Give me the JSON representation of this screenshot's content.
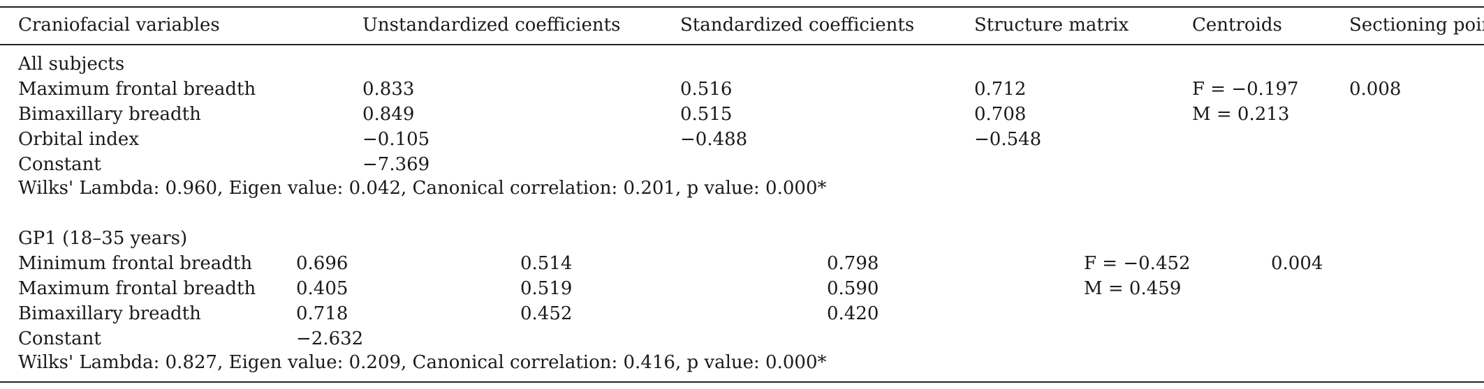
{
  "table": {
    "header": {
      "col1": "Craniofacial variables",
      "col2": "Unstandardized coefficients",
      "col3": "Standardized coefficients",
      "col4": "Structure matrix",
      "col5": "Centroids",
      "col6": "Sectioning poir"
    },
    "group1": {
      "title": "All subjects",
      "rows": [
        {
          "label": "Maximum frontal breadth",
          "unstd": "0.833",
          "std": "0.516",
          "struct": "0.712",
          "centroid": "F = −0.197",
          "section": "0.008"
        },
        {
          "label": "Bimaxillary breadth",
          "unstd": "0.849",
          "std": "0.515",
          "struct": "0.708",
          "centroid": "M = 0.213",
          "section": ""
        },
        {
          "label": "Orbital index",
          "unstd": "−0.105",
          "std": "−0.488",
          "struct": "−0.548",
          "centroid": "",
          "section": ""
        },
        {
          "label": "Constant",
          "unstd": "−7.369",
          "std": "",
          "struct": "",
          "centroid": "",
          "section": ""
        }
      ],
      "summary": "Wilks' Lambda: 0.960, Eigen value: 0.042, Canonical correlation: 0.201, p value: 0.000*"
    },
    "group2": {
      "title": "GP1 (18–35 years)",
      "rows": [
        {
          "label": "Minimum frontal breadth",
          "unstd": "0.696",
          "std": "0.514",
          "struct": "0.798",
          "centroid": "F = −0.452",
          "section": "0.004"
        },
        {
          "label": "Maximum frontal breadth",
          "unstd": "0.405",
          "std": "0.519",
          "struct": "0.590",
          "centroid": "M = 0.459",
          "section": ""
        },
        {
          "label": "Bimaxillary breadth",
          "unstd": "0.718",
          "std": "0.452",
          "struct": "0.420",
          "centroid": "",
          "section": ""
        },
        {
          "label": "Constant",
          "unstd": "−2.632",
          "std": "",
          "struct": "",
          "centroid": "",
          "section": ""
        }
      ],
      "summary": "Wilks' Lambda: 0.827, Eigen value: 0.209, Canonical correlation: 0.416, p value: 0.000*"
    }
  }
}
